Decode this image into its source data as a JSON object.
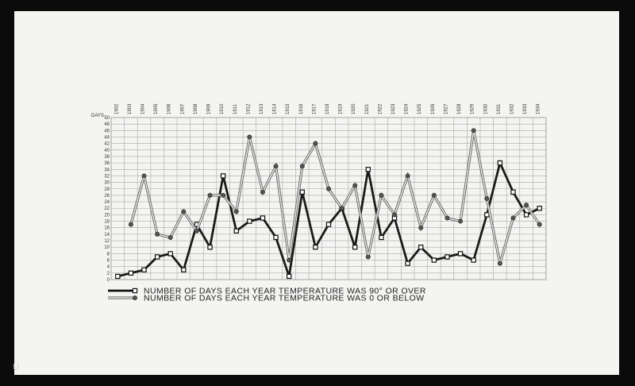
{
  "chart_data": {
    "type": "line",
    "ylabel": "DAYS",
    "categories": [
      "1902",
      "1903",
      "1904",
      "1905",
      "1906",
      "1907",
      "1908",
      "1909",
      "1910",
      "1911",
      "1912",
      "1913",
      "1914",
      "1915",
      "1916",
      "1917",
      "1918",
      "1919",
      "1920",
      "1921",
      "1922",
      "1923",
      "1924",
      "1925",
      "1926",
      "1927",
      "1928",
      "1929",
      "1930",
      "1931",
      "1932",
      "1933",
      "1934"
    ],
    "yticks": [
      0,
      2,
      4,
      6,
      8,
      10,
      12,
      14,
      16,
      18,
      20,
      22,
      24,
      26,
      28,
      30,
      32,
      34,
      36,
      38,
      40,
      42,
      44,
      46,
      48,
      50
    ],
    "ylim": [
      0,
      50
    ],
    "grid": true,
    "series": [
      {
        "name": "NUMBER OF DAYS EACH YEAR TEMPERATURE WAS 90° OR OVER",
        "color": "#1a1a1a",
        "style": "heavy-solid",
        "marker": "square",
        "values": [
          1,
          2,
          3,
          7,
          8,
          3,
          17,
          10,
          32,
          15,
          18,
          19,
          13,
          1,
          27,
          10,
          17,
          22,
          10,
          34,
          13,
          19,
          5,
          10,
          6,
          7,
          8,
          6,
          20,
          36,
          27,
          20,
          22
        ]
      },
      {
        "name": "NUMBER OF DAYS EACH YEAR TEMPERATURE WAS 0 OR BELOW",
        "color": "#555555",
        "style": "double-line",
        "marker": "circle",
        "values": [
          null,
          17,
          32,
          14,
          13,
          21,
          15,
          26,
          26,
          21,
          44,
          27,
          35,
          6,
          35,
          42,
          28,
          22,
          29,
          7,
          26,
          20,
          32,
          16,
          26,
          19,
          18,
          46,
          25,
          5,
          19,
          23,
          17
        ]
      }
    ]
  },
  "page": {
    "footer_mark": "ʋ"
  }
}
